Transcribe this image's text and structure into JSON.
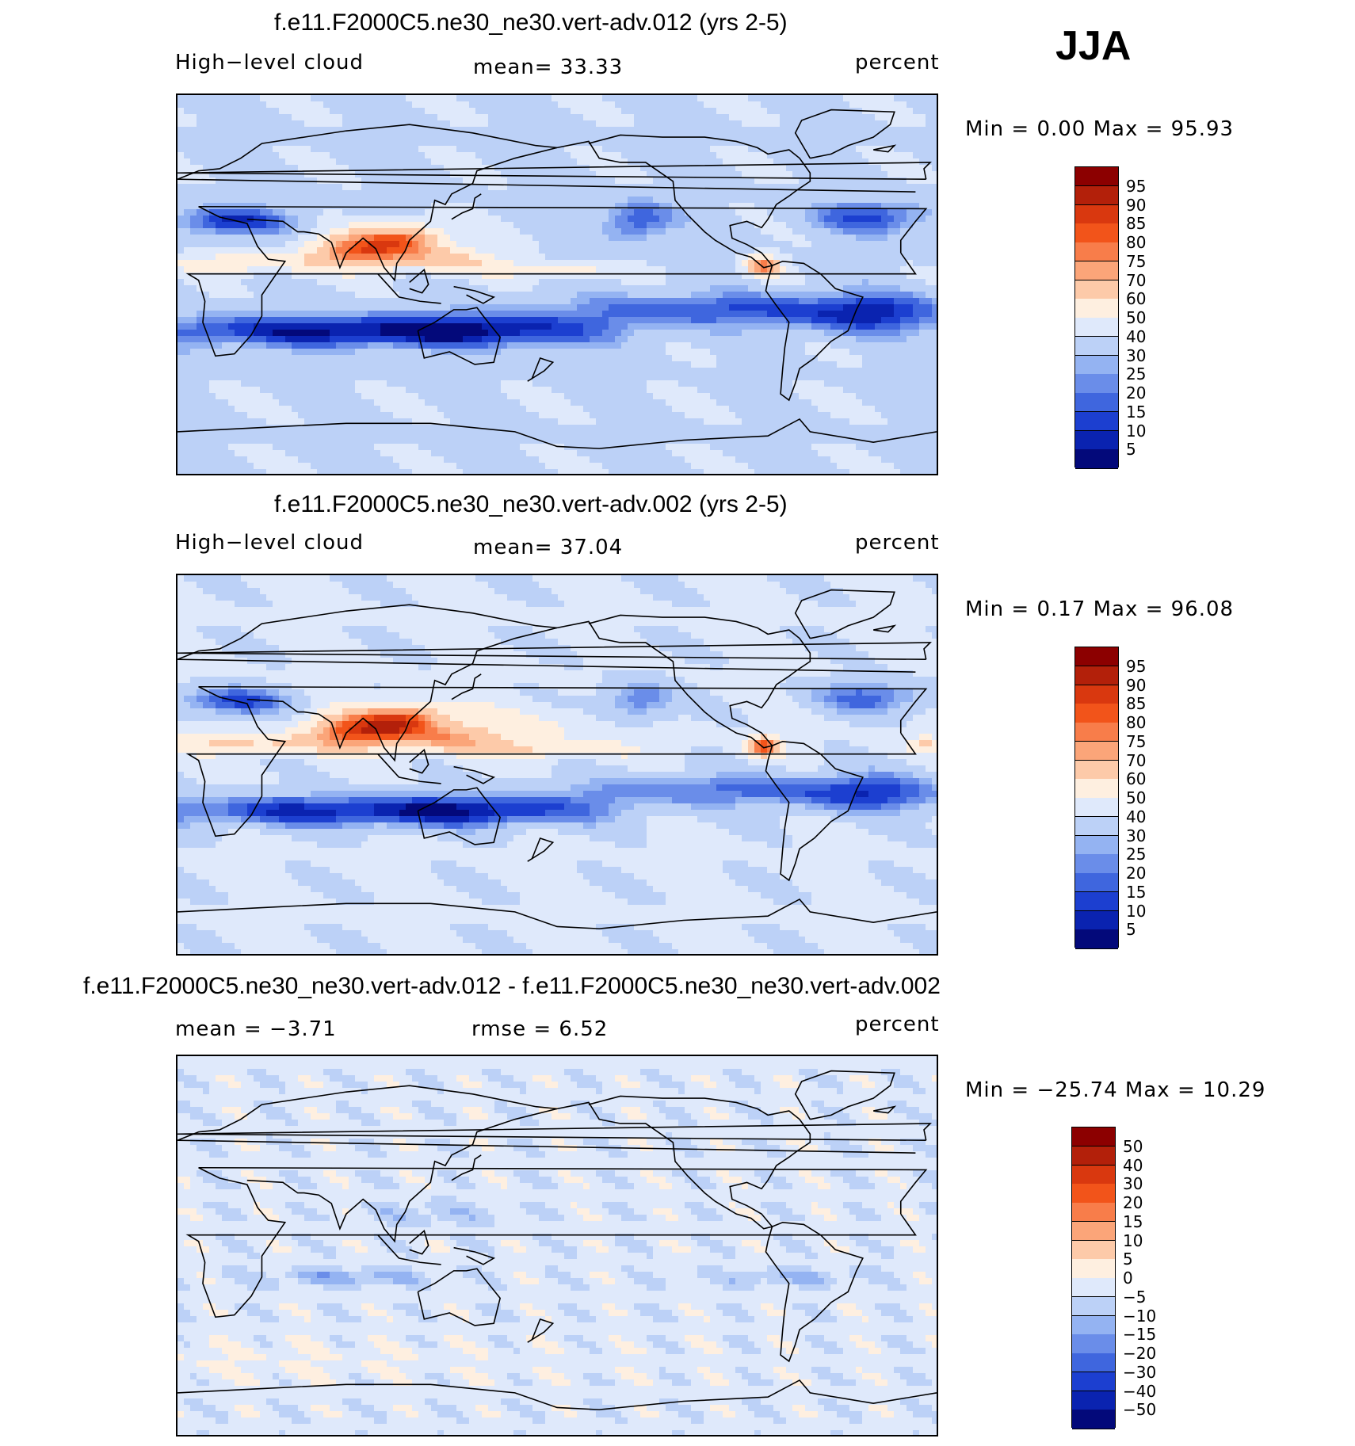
{
  "season": "JJA",
  "panels": [
    {
      "id": "top",
      "title": "f.e11.F2000C5.ne30_ne30.vert-adv.012 (yrs 2-5)",
      "left_label": "High−level cloud",
      "center_label": "mean=   33.33",
      "right_label": "percent",
      "minmax": "Min =    0.00  Max =   95.93",
      "colorbar_labels": [
        "95",
        "90",
        "85",
        "80",
        "75",
        "70",
        "60",
        "50",
        "40",
        "30",
        "25",
        "20",
        "15",
        "10",
        "5"
      ],
      "colorbar_colors": [
        "#8c0000",
        "#b3200a",
        "#d9380f",
        "#f2541a",
        "#f87d4a",
        "#fba579",
        "#fdcaa9",
        "#feefe0",
        "#dfe9fb",
        "#bcd1f7",
        "#94b3f2",
        "#6a8de9",
        "#3f66de",
        "#1c3fd0",
        "#0a23b0",
        "#03097a"
      ],
      "field": "base"
    },
    {
      "id": "middle",
      "title": "f.e11.F2000C5.ne30_ne30.vert-adv.002 (yrs 2-5)",
      "left_label": "High−level cloud",
      "center_label": "mean=   37.04",
      "right_label": "percent",
      "minmax": "Min =    0.17  Max =   96.08",
      "colorbar_labels": [
        "95",
        "90",
        "85",
        "80",
        "75",
        "70",
        "60",
        "50",
        "40",
        "30",
        "25",
        "20",
        "15",
        "10",
        "5"
      ],
      "colorbar_colors": [
        "#8c0000",
        "#b3200a",
        "#d9380f",
        "#f2541a",
        "#f87d4a",
        "#fba579",
        "#fdcaa9",
        "#feefe0",
        "#dfe9fb",
        "#bcd1f7",
        "#94b3f2",
        "#6a8de9",
        "#3f66de",
        "#1c3fd0",
        "#0a23b0",
        "#03097a"
      ],
      "field": "base"
    },
    {
      "id": "bottom",
      "title": "f.e11.F2000C5.ne30_ne30.vert-adv.012 - f.e11.F2000C5.ne30_ne30.vert-adv.002",
      "left_label": "mean =   −3.71",
      "center_label": "rmse =    6.52",
      "right_label": "percent",
      "minmax": "Min = −25.74  Max =   10.29",
      "colorbar_labels": [
        "50",
        "40",
        "30",
        "20",
        "15",
        "10",
        "5",
        "0",
        "−5",
        "−10",
        "−15",
        "−20",
        "−30",
        "−40",
        "−50"
      ],
      "colorbar_colors": [
        "#8c0000",
        "#b3200a",
        "#d9380f",
        "#f2541a",
        "#f87d4a",
        "#fba579",
        "#fdcaa9",
        "#feefe0",
        "#dfe9fb",
        "#bcd1f7",
        "#94b3f2",
        "#6a8de9",
        "#3f66de",
        "#1c3fd0",
        "#0a23b0",
        "#03097a"
      ],
      "field": "diff"
    }
  ]
}
